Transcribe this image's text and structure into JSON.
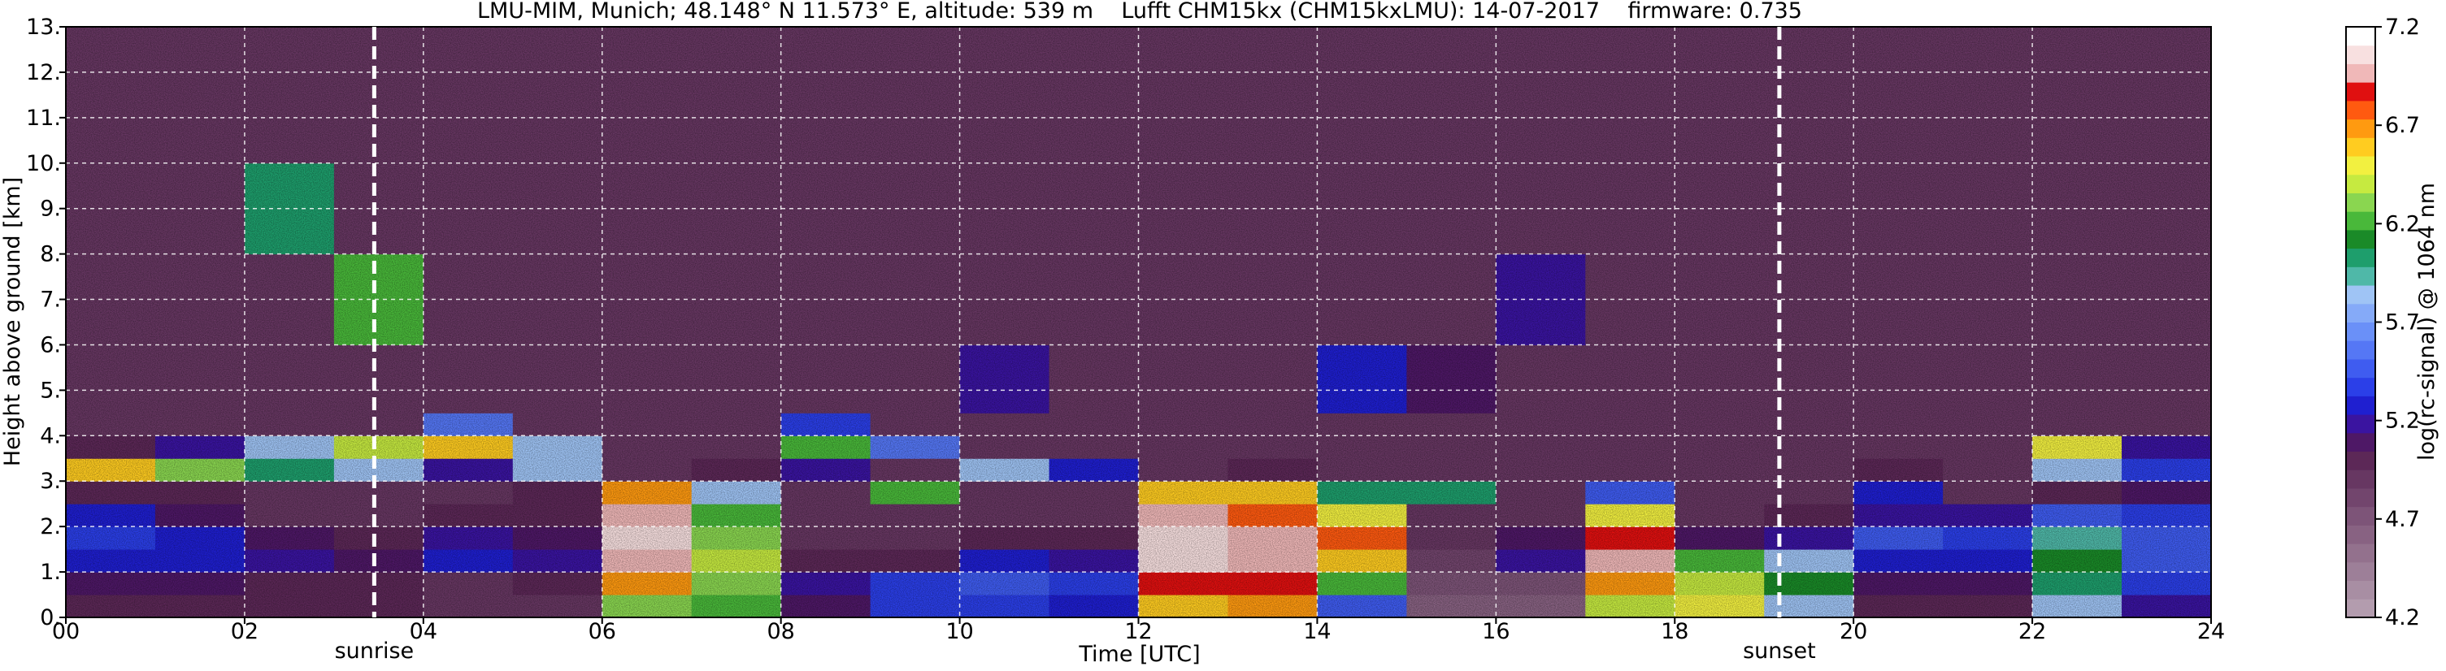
{
  "chart_data": {
    "type": "heatmap",
    "title": "LMU-MIM, Munich; 48.148° N 11.573° E, altitude: 539 m    Lufft CHM15kx (CHM15kxLMU): 14-07-2017    firmware: 0.735",
    "x_label": "Time [UTC]",
    "y_label": "Height above ground [km]",
    "colorbar_label": "log(rc-signal) @ 1064 nm",
    "xlim": [
      0,
      24
    ],
    "ylim": [
      0,
      13
    ],
    "xticks": [
      {
        "value": 0,
        "label": "00"
      },
      {
        "value": 2,
        "label": "02"
      },
      {
        "value": 4,
        "label": "04"
      },
      {
        "value": 6,
        "label": "06"
      },
      {
        "value": 8,
        "label": "08"
      },
      10,
      12,
      14,
      16,
      18,
      20,
      22,
      24
    ],
    "yticks": [
      {
        "value": 0,
        "label": "0."
      },
      {
        "value": 1,
        "label": "1."
      },
      {
        "value": 2,
        "label": "2."
      },
      {
        "value": 3,
        "label": "3."
      },
      {
        "value": 4,
        "label": "4."
      },
      {
        "value": 5,
        "label": "5."
      },
      {
        "value": 6,
        "label": "6."
      },
      {
        "value": 7,
        "label": "7."
      },
      {
        "value": 8,
        "label": "8."
      },
      {
        "value": 9,
        "label": "9."
      },
      {
        "value": 10,
        "label": "10."
      },
      {
        "value": 11,
        "label": "11."
      },
      {
        "value": 12,
        "label": "12."
      },
      {
        "value": 13,
        "label": "13."
      }
    ],
    "grid": true,
    "grid_color": "#ffffff",
    "clim": [
      4.2,
      7.2
    ],
    "cticks": [
      4.2,
      4.7,
      5.2,
      5.7,
      6.2,
      6.7,
      7.2
    ],
    "colormap": [
      "#b39cae",
      "#a88ea3",
      "#9d7f98",
      "#93718d",
      "#886282",
      "#7d5478",
      "#72456d",
      "#673762",
      "#5c2857",
      "#4e1866",
      "#3a14a0",
      "#1f1fd0",
      "#2b3fe8",
      "#3f5cf0",
      "#5577f5",
      "#6a90f8",
      "#85aaf8",
      "#9fc4f5",
      "#4fb8a8",
      "#1e9e6c",
      "#1a8a28",
      "#49b83a",
      "#8ad650",
      "#c6ea40",
      "#f2f040",
      "#ffcc20",
      "#ff9a10",
      "#ff5a10",
      "#e01010",
      "#f0b8b8",
      "#f8e0e0",
      "#ffffff"
    ],
    "xbins": [
      0,
      1,
      2,
      3,
      4,
      5,
      6,
      7,
      8,
      9,
      10,
      11,
      12,
      13,
      14,
      15,
      16,
      17,
      18,
      19,
      20,
      21,
      22,
      23,
      24
    ],
    "ybins": [
      0,
      0.5,
      1,
      1.5,
      2,
      2.5,
      3,
      3.5,
      4,
      4.5,
      6,
      8,
      10,
      13
    ],
    "z": [
      [
        5.0,
        5.0,
        5.0,
        5.0,
        4.9,
        4.9,
        6.3,
        6.2,
        5.1,
        5.4,
        5.4,
        5.3,
        6.6,
        6.7,
        5.5,
        4.6,
        4.6,
        6.4,
        6.5,
        5.8,
        5.0,
        5.0,
        5.8,
        5.2
      ],
      [
        5.1,
        5.1,
        5.0,
        5.0,
        4.9,
        5.0,
        6.7,
        6.3,
        5.2,
        5.4,
        5.5,
        5.4,
        6.9,
        6.9,
        6.2,
        4.7,
        4.7,
        6.7,
        6.4,
        6.1,
        5.1,
        5.1,
        6.0,
        5.4
      ],
      [
        5.3,
        5.3,
        5.2,
        5.1,
        5.3,
        5.2,
        7.0,
        6.4,
        5.0,
        5.0,
        5.3,
        5.2,
        7.1,
        7.0,
        6.6,
        4.8,
        5.2,
        7.0,
        6.2,
        5.8,
        5.3,
        5.3,
        6.1,
        5.5
      ],
      [
        5.4,
        5.3,
        5.1,
        5.0,
        5.2,
        5.1,
        7.1,
        6.3,
        4.9,
        4.9,
        5.0,
        5.0,
        7.1,
        7.0,
        6.8,
        4.9,
        5.1,
        6.9,
        5.1,
        5.2,
        5.5,
        5.4,
        5.9,
        5.5
      ],
      [
        5.3,
        5.1,
        4.9,
        4.9,
        5.0,
        5.0,
        7.0,
        6.2,
        4.9,
        4.9,
        4.9,
        4.9,
        7.0,
        6.8,
        6.5,
        4.9,
        4.9,
        6.5,
        4.9,
        5.0,
        5.2,
        5.2,
        5.5,
        5.4
      ],
      [
        5.0,
        5.0,
        4.9,
        4.9,
        4.9,
        5.0,
        6.7,
        5.8,
        4.9,
        6.2,
        4.9,
        4.9,
        6.6,
        6.6,
        6.0,
        6.0,
        4.9,
        5.5,
        4.9,
        4.9,
        5.3,
        4.9,
        5.0,
        5.1
      ],
      [
        6.6,
        6.3,
        6.0,
        5.8,
        5.2,
        5.8,
        4.9,
        5.0,
        5.2,
        4.9,
        5.8,
        5.3,
        4.9,
        5.0,
        4.9,
        4.9,
        4.9,
        4.9,
        4.9,
        4.9,
        5.0,
        4.9,
        5.8,
        5.4
      ],
      [
        5.0,
        5.2,
        5.8,
        6.4,
        6.6,
        5.8,
        4.9,
        4.9,
        6.2,
        5.6,
        4.9,
        4.9,
        4.9,
        4.9,
        4.9,
        4.9,
        4.9,
        4.9,
        4.9,
        4.9,
        4.9,
        4.9,
        6.5,
        5.2
      ],
      [
        4.9,
        4.9,
        4.9,
        4.9,
        5.6,
        4.9,
        4.9,
        4.9,
        5.4,
        4.9,
        4.9,
        4.9,
        4.9,
        4.9,
        4.9,
        4.9,
        4.9,
        4.9,
        4.9,
        4.9,
        4.9,
        4.9,
        4.9,
        4.9
      ],
      [
        4.9,
        4.9,
        4.9,
        4.9,
        4.9,
        4.9,
        4.9,
        4.9,
        4.9,
        4.9,
        5.2,
        4.9,
        4.9,
        4.9,
        5.3,
        5.1,
        4.9,
        4.9,
        4.9,
        4.9,
        4.9,
        4.9,
        4.9,
        4.9
      ],
      [
        4.9,
        4.9,
        4.9,
        6.2,
        4.9,
        4.9,
        4.9,
        4.9,
        4.9,
        4.9,
        4.9,
        4.9,
        4.9,
        4.9,
        4.9,
        4.9,
        5.2,
        4.9,
        4.9,
        4.9,
        4.9,
        4.9,
        4.9,
        4.9
      ],
      [
        4.9,
        4.9,
        6.0,
        4.9,
        4.9,
        4.9,
        4.9,
        4.9,
        4.9,
        4.9,
        4.9,
        4.9,
        4.9,
        4.9,
        4.9,
        4.9,
        4.9,
        4.9,
        4.9,
        4.9,
        4.9,
        4.9,
        4.9,
        4.9
      ],
      [
        4.9,
        4.9,
        4.9,
        4.9,
        4.9,
        4.9,
        4.9,
        4.9,
        4.9,
        4.9,
        4.9,
        4.9,
        4.9,
        4.9,
        4.9,
        4.9,
        4.9,
        4.9,
        4.9,
        4.9,
        4.9,
        4.9,
        4.9,
        4.9
      ]
    ],
    "annotations": [
      {
        "text": "sunrise",
        "x": 3.45
      },
      {
        "text": "sunset",
        "x": 19.17
      }
    ]
  }
}
